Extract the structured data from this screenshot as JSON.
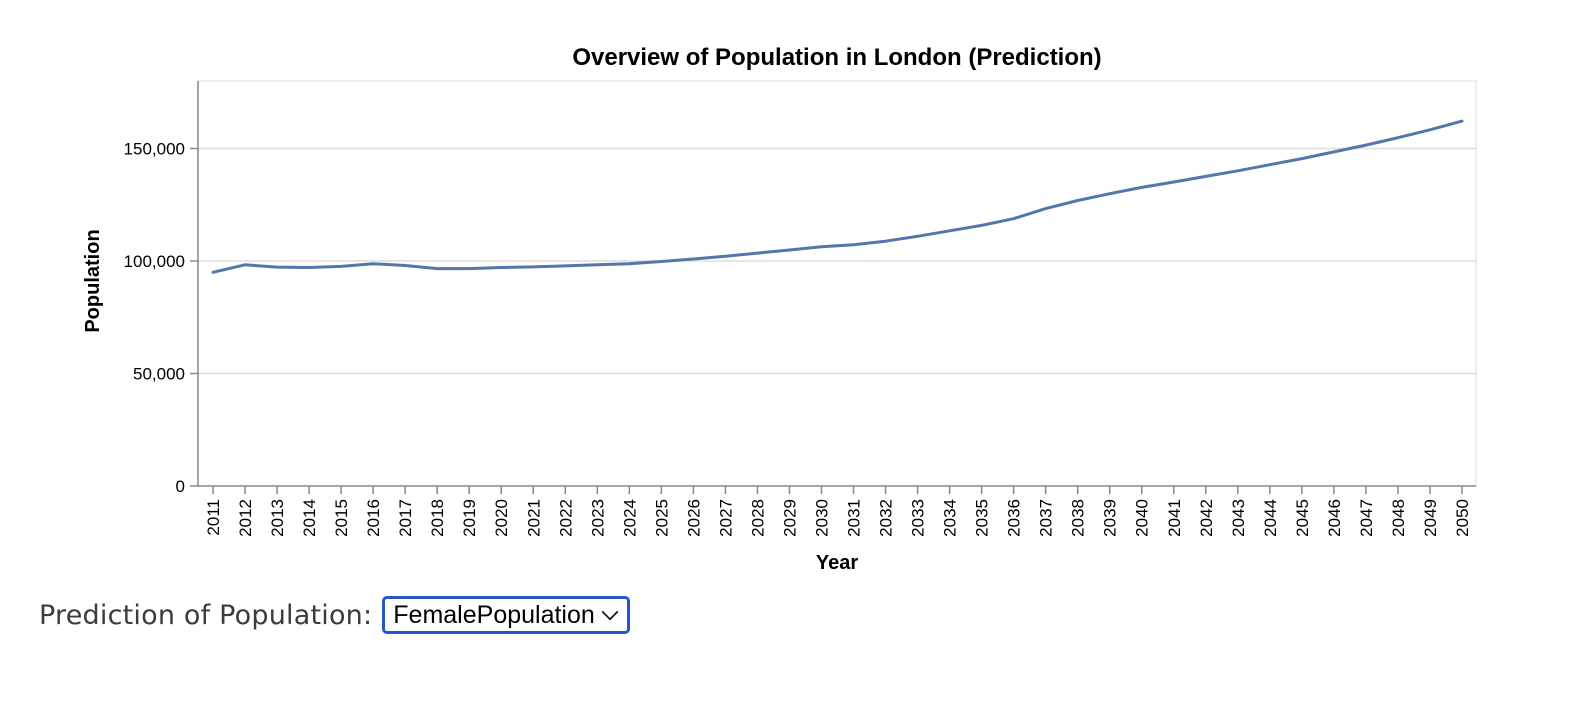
{
  "chart_data": {
    "type": "line",
    "title": "Overview of Population in London (Prediction)",
    "xlabel": "Year",
    "ylabel": "Population",
    "ylim": [
      0,
      180000
    ],
    "yticks": [
      0,
      50000,
      100000,
      150000
    ],
    "ytick_labels": [
      "0",
      "50,000",
      "100,000",
      "150,000"
    ],
    "grid": true,
    "line_color": "#5477a9",
    "categories": [
      "2011",
      "2012",
      "2013",
      "2014",
      "2015",
      "2016",
      "2017",
      "2018",
      "2019",
      "2020",
      "2021",
      "2022",
      "2023",
      "2024",
      "2025",
      "2026",
      "2027",
      "2028",
      "2029",
      "2030",
      "2031",
      "2032",
      "2033",
      "2034",
      "2035",
      "2036",
      "2037",
      "2038",
      "2039",
      "2040",
      "2041",
      "2042",
      "2043",
      "2044",
      "2045",
      "2046",
      "2047",
      "2048",
      "2049",
      "2050"
    ],
    "series": [
      {
        "values": [
          95000,
          98300,
          97300,
          97100,
          97600,
          98800,
          98000,
          96600,
          96600,
          97100,
          97400,
          97800,
          98300,
          98800,
          99800,
          100900,
          102100,
          103500,
          104900,
          106300,
          107200,
          108800,
          111000,
          113400,
          115800,
          118800,
          123300,
          126900,
          129900,
          132700,
          135100,
          137600,
          140100,
          142800,
          145500,
          148500,
          151500,
          154800,
          158300,
          162200
        ]
      }
    ]
  },
  "control": {
    "label": "Prediction of Population:",
    "selected": "FemalePopulation"
  }
}
